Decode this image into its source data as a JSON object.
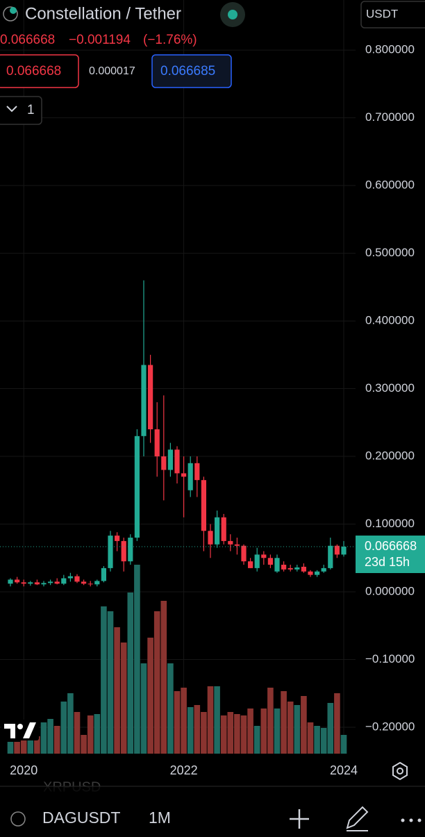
{
  "header": {
    "title": "Constellation / Tether",
    "change": "−0.001194",
    "change_pct": "(−1.76%)",
    "bid": "0.066668",
    "spread": "0.000017",
    "ask": "0.066685",
    "indicator_count": "1",
    "currency": "USDT"
  },
  "chart_data": {
    "type": "candlestick",
    "categories": [
      null,
      null,
      "2020",
      null,
      null,
      null,
      null,
      null,
      null,
      null,
      null,
      null,
      null,
      null,
      null,
      null,
      null,
      null,
      null,
      null,
      null,
      null,
      null,
      null,
      null,
      null,
      "2022",
      null,
      null,
      null,
      null,
      null,
      null,
      null,
      null,
      null,
      null,
      null,
      null,
      null,
      null,
      null,
      null,
      null,
      null,
      null,
      null,
      null,
      null,
      null,
      "2024"
    ],
    "open": [
      0.012,
      0.018,
      0.014,
      0.012,
      0.014,
      0.011,
      0.013,
      0.015,
      0.012,
      0.02,
      0.023,
      0.015,
      0.012,
      0.011,
      0.016,
      0.035,
      0.083,
      0.075,
      0.045,
      0.08,
      0.23,
      0.335,
      0.24,
      0.2,
      0.18,
      0.21,
      0.175,
      0.15,
      0.19,
      0.165,
      0.09,
      0.07,
      0.11,
      0.075,
      0.07,
      0.068,
      0.045,
      0.035,
      0.055,
      0.05,
      0.03,
      0.04,
      0.035,
      0.033,
      0.037,
      0.03,
      0.025,
      0.03,
      0.035,
      0.068,
      0.055
    ],
    "high": [
      0.02,
      0.022,
      0.018,
      0.016,
      0.018,
      0.016,
      0.018,
      0.02,
      0.025,
      0.028,
      0.026,
      0.018,
      0.016,
      0.018,
      0.038,
      0.09,
      0.088,
      0.08,
      0.085,
      0.24,
      0.46,
      0.35,
      0.28,
      0.29,
      0.22,
      0.215,
      0.2,
      0.2,
      0.2,
      0.17,
      0.1,
      0.12,
      0.115,
      0.085,
      0.08,
      0.07,
      0.05,
      0.065,
      0.06,
      0.055,
      0.055,
      0.045,
      0.04,
      0.04,
      0.042,
      0.032,
      0.032,
      0.04,
      0.08,
      0.07,
      0.075
    ],
    "low": [
      0.008,
      0.012,
      0.008,
      0.009,
      0.01,
      0.008,
      0.01,
      0.011,
      0.01,
      0.015,
      0.013,
      0.01,
      0.008,
      0.008,
      0.014,
      0.03,
      0.06,
      0.03,
      0.04,
      0.075,
      0.2,
      0.22,
      0.17,
      0.135,
      0.17,
      0.16,
      0.11,
      0.14,
      0.14,
      0.06,
      0.05,
      0.065,
      0.07,
      0.06,
      0.055,
      0.04,
      0.035,
      0.03,
      0.04,
      0.035,
      0.028,
      0.03,
      0.03,
      0.03,
      0.028,
      0.022,
      0.022,
      0.028,
      0.033,
      0.05,
      0.052
    ],
    "close": [
      0.018,
      0.014,
      0.012,
      0.014,
      0.011,
      0.013,
      0.015,
      0.012,
      0.02,
      0.023,
      0.015,
      0.012,
      0.011,
      0.016,
      0.035,
      0.083,
      0.075,
      0.045,
      0.08,
      0.23,
      0.335,
      0.24,
      0.2,
      0.18,
      0.21,
      0.175,
      0.17,
      0.19,
      0.165,
      0.09,
      0.07,
      0.11,
      0.075,
      0.07,
      0.068,
      0.045,
      0.035,
      0.055,
      0.05,
      0.04,
      0.05,
      0.033,
      0.033,
      0.036,
      0.03,
      0.025,
      0.03,
      0.035,
      0.068,
      0.055,
      0.066668
    ],
    "volume": [
      17,
      17,
      20,
      22,
      25,
      45,
      50,
      40,
      75,
      87,
      60,
      27,
      55,
      57,
      212,
      205,
      182,
      160,
      232,
      272,
      130,
      167,
      205,
      220,
      130,
      90,
      95,
      67,
      70,
      60,
      97,
      97,
      55,
      60,
      57,
      55,
      65,
      40,
      65,
      95,
      65,
      90,
      75,
      70,
      83,
      45,
      40,
      37,
      73,
      87,
      27
    ],
    "up_color": "#22ab94",
    "down_color": "#f23645",
    "up_volume_color": "#1f6b62",
    "down_volume_color": "#8a3430",
    "last_price": 0.066668,
    "countdown": "23d 15h",
    "ylim": [
      -0.239,
      0.874
    ],
    "yticks": [
      {
        "value": 0.8,
        "label": "0.800000"
      },
      {
        "value": 0.7,
        "label": "0.700000"
      },
      {
        "value": 0.6,
        "label": "0.600000"
      },
      {
        "value": 0.5,
        "label": "0.500000"
      },
      {
        "value": 0.4,
        "label": "0.400000"
      },
      {
        "value": 0.3,
        "label": "0.300000"
      },
      {
        "value": 0.2,
        "label": "0.200000"
      },
      {
        "value": 0.1,
        "label": "0.100000"
      },
      {
        "value": 0,
        "label": "0.000000"
      },
      {
        "value": -0.1,
        "label": "−0.10000"
      },
      {
        "value": -0.2,
        "label": "−0.20000"
      }
    ],
    "grid": true
  },
  "footer": {
    "ghost": "XRPUSD",
    "symbol": "DAGUSDT",
    "interval": "1M"
  }
}
